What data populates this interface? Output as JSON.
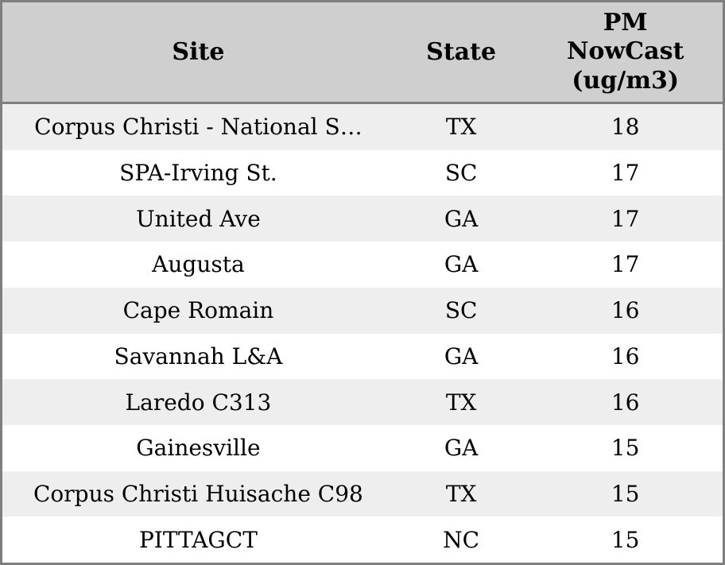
{
  "table": {
    "columns": [
      {
        "id": "site",
        "label": "Site"
      },
      {
        "id": "state",
        "label": "State"
      },
      {
        "id": "value",
        "label": "PM NowCast (ug/m3)"
      }
    ],
    "rows": [
      {
        "site": "Corpus Christi - National S…",
        "state": "TX",
        "value": "18"
      },
      {
        "site": "SPA-Irving St.",
        "state": "SC",
        "value": "17"
      },
      {
        "site": "United Ave",
        "state": "GA",
        "value": "17"
      },
      {
        "site": "Augusta",
        "state": "GA",
        "value": "17"
      },
      {
        "site": "Cape Romain",
        "state": "SC",
        "value": "16"
      },
      {
        "site": "Savannah L&A",
        "state": "GA",
        "value": "16"
      },
      {
        "site": "Laredo C313",
        "state": "TX",
        "value": "16"
      },
      {
        "site": "Gainesville",
        "state": "GA",
        "value": "15"
      },
      {
        "site": "Corpus Christi Huisache C98",
        "state": "TX",
        "value": "15"
      },
      {
        "site": "PITTAGCT",
        "state": "NC",
        "value": "15"
      }
    ]
  },
  "colors": {
    "header_bg": "#cfcfcf",
    "row_bg": "#ffffff",
    "row_alt_bg": "#eeeeee",
    "border": "#7f7f7f",
    "text": "#000000"
  },
  "chart_data": {
    "type": "table",
    "columns": [
      "Site",
      "State",
      "PM NowCast (ug/m3)"
    ],
    "rows": [
      [
        "Corpus Christi - National S…",
        "TX",
        18
      ],
      [
        "SPA-Irving St.",
        "SC",
        17
      ],
      [
        "United Ave",
        "GA",
        17
      ],
      [
        "Augusta",
        "GA",
        17
      ],
      [
        "Cape Romain",
        "SC",
        16
      ],
      [
        "Savannah L&A",
        "GA",
        16
      ],
      [
        "Laredo C313",
        "TX",
        16
      ],
      [
        "Gainesville",
        "GA",
        15
      ],
      [
        "Corpus Christi Huisache C98",
        "TX",
        15
      ],
      [
        "PITTAGCT",
        "NC",
        15
      ]
    ],
    "title": "",
    "layout_hints": {
      "header_row": true,
      "alternating_row_shading": true,
      "all_cells_center_aligned": true
    }
  }
}
